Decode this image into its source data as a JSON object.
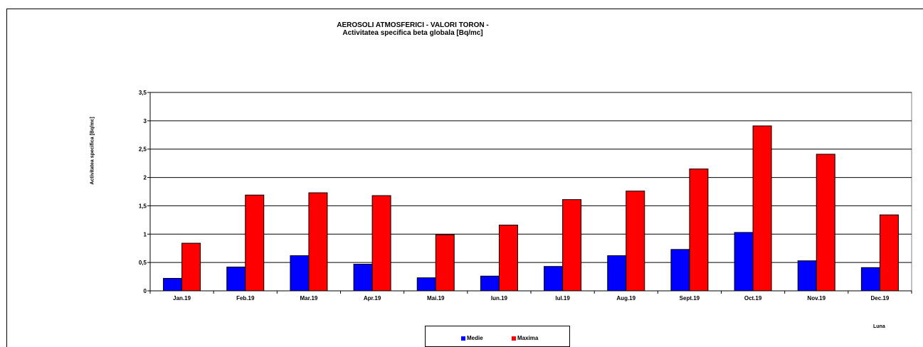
{
  "chart_data": {
    "type": "bar",
    "title": "AEROSOLI ATMOSFERICI - VALORI TORON -",
    "subtitle": "Activitatea specifica beta globala [Bq/mc]",
    "xlabel": "Luna",
    "ylabel": "Activitatea specifica [Bq/mc]",
    "ylim": [
      0,
      3.5
    ],
    "yticks": [
      "0",
      "0,5",
      "1",
      "1,5",
      "2",
      "2,5",
      "3",
      "3,5"
    ],
    "grid": true,
    "legend_position": "bottom",
    "categories": [
      "Jan.19",
      "Feb.19",
      "Mar.19",
      "Apr.19",
      "Mai.19",
      "Iun.19",
      "Iul.19",
      "Aug.19",
      "Sept.19",
      "Oct.19",
      "Nov.19",
      "Dec.19"
    ],
    "series": [
      {
        "name": "Medie",
        "color": "#0000ff",
        "values": [
          0.22,
          0.42,
          0.62,
          0.47,
          0.23,
          0.26,
          0.43,
          0.62,
          0.73,
          1.03,
          0.53,
          0.41
        ]
      },
      {
        "name": "Maxima",
        "color": "#ff0000",
        "values": [
          0.84,
          1.69,
          1.73,
          1.68,
          0.99,
          1.16,
          1.61,
          1.76,
          2.15,
          2.91,
          2.41,
          1.34
        ]
      }
    ]
  }
}
